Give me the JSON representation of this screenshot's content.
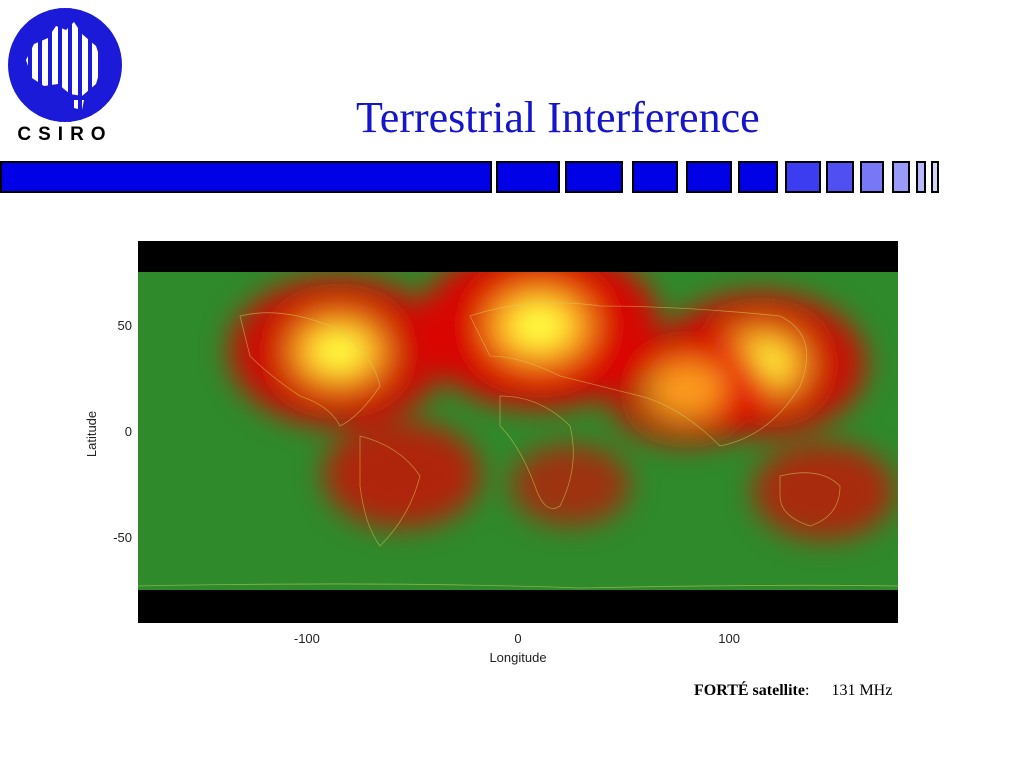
{
  "logo": {
    "text": "CSIRO"
  },
  "slide": {
    "title": "Terrestrial Interference"
  },
  "chart_data": {
    "type": "heatmap",
    "xlabel": "Longitude",
    "ylabel": "Latitude",
    "x_ticks": [
      -100,
      0,
      100
    ],
    "y_ticks": [
      50,
      0,
      -50
    ],
    "xlim": [
      -180,
      180
    ],
    "ylim": [
      -90,
      90
    ],
    "hotspots": [
      {
        "lon": -85,
        "lat": 38,
        "intensity": 0.85
      },
      {
        "lon": 10,
        "lat": 50,
        "intensity": 1.0
      },
      {
        "lon": 115,
        "lat": 32,
        "intensity": 0.8
      },
      {
        "lon": -55,
        "lat": -20,
        "intensity": 0.45
      },
      {
        "lon": 145,
        "lat": -28,
        "intensity": 0.35
      },
      {
        "lon": 25,
        "lat": -25,
        "intensity": 0.2
      },
      {
        "lon": 80,
        "lat": 20,
        "intensity": 0.5
      }
    ],
    "colors": {
      "low": "#2e8b2e",
      "mid": "#e00000",
      "high": "#ffff40",
      "nodata": "#000000"
    }
  },
  "caption": {
    "source_bold": "FORTÉ satellite",
    "separator": ":",
    "frequency": "131 MHz"
  },
  "colors": {
    "title": "#1515cc",
    "bar": "#0000e6"
  }
}
